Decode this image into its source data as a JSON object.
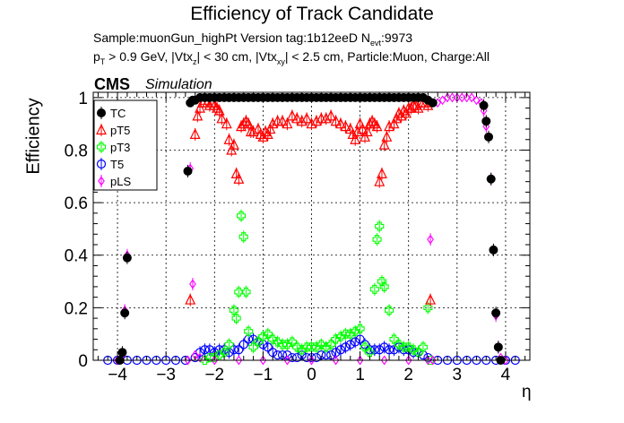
{
  "header": {
    "title": "Efficiency of Track Candidate",
    "subtitle_line1": "Sample:muonGun_highPt   Version tag:1b12eeD  N",
    "subtitle_line1_sub": "evt",
    "subtitle_line1_end": ":9973",
    "subtitle_line2_parts": [
      "p",
      "T",
      " > 0.9 GeV, |Vtx",
      "z",
      "| < 30 cm, |Vtx",
      "xy",
      "| < 2.5 cm, Particle:Muon, Charge:All"
    ],
    "experiment": "CMS",
    "tag": "Simulation"
  },
  "colors": {
    "TC": "#000000",
    "pT5": "#ff0000",
    "pT3": "#00ff00",
    "T5": "#0000ff",
    "pLS": "#ff00ff"
  },
  "chart_data": {
    "type": "scatter",
    "title": "Efficiency of Track Candidate",
    "xlabel": "η",
    "ylabel": "Efficiency",
    "xlim": [
      -4.5,
      4.5
    ],
    "ylim": [
      0,
      1.02
    ],
    "grid": true,
    "xticks": [
      -4,
      -3,
      -2,
      -1,
      0,
      1,
      2,
      3,
      4
    ],
    "xtick_labels": [
      "−4",
      "−3",
      "−2",
      "−1",
      "0",
      "1",
      "2",
      "3",
      "4"
    ],
    "yticks": [
      0,
      0.2,
      0.4,
      0.6,
      0.8,
      1
    ],
    "ytick_labels": [
      "0",
      "0.2",
      "0.4",
      "0.6",
      "0.8",
      "1"
    ],
    "legend": {
      "placement": "top-left",
      "entries": [
        "TC",
        "pT5",
        "pT3",
        "T5",
        "pLS"
      ]
    },
    "series": [
      {
        "name": "TC",
        "marker": "filled-circle",
        "points": [
          [
            -3.95,
            0.0
          ],
          [
            -3.9,
            0.03
          ],
          [
            -3.85,
            0.18
          ],
          [
            -3.8,
            0.39
          ],
          [
            -2.55,
            0.72
          ],
          [
            -2.5,
            0.98
          ],
          [
            -2.45,
            0.99
          ],
          [
            -2.4,
            0.99
          ],
          [
            -2.3,
            1.0
          ],
          [
            -2.2,
            1.0
          ],
          [
            -2.1,
            1.0
          ],
          [
            -2.0,
            1.0
          ],
          [
            -1.9,
            1.0
          ],
          [
            -1.8,
            1.0
          ],
          [
            -1.7,
            1.0
          ],
          [
            -1.6,
            1.0
          ],
          [
            -1.5,
            1.0
          ],
          [
            -1.4,
            1.0
          ],
          [
            -1.3,
            1.0
          ],
          [
            -1.2,
            1.0
          ],
          [
            -1.1,
            1.0
          ],
          [
            -1.0,
            1.0
          ],
          [
            -0.9,
            1.0
          ],
          [
            -0.8,
            1.0
          ],
          [
            -0.7,
            1.0
          ],
          [
            -0.6,
            1.0
          ],
          [
            -0.5,
            1.0
          ],
          [
            -0.4,
            1.0
          ],
          [
            -0.3,
            1.0
          ],
          [
            -0.2,
            1.0
          ],
          [
            -0.1,
            1.0
          ],
          [
            0.0,
            1.0
          ],
          [
            0.1,
            1.0
          ],
          [
            0.2,
            1.0
          ],
          [
            0.3,
            1.0
          ],
          [
            0.4,
            1.0
          ],
          [
            0.5,
            1.0
          ],
          [
            0.6,
            1.0
          ],
          [
            0.7,
            1.0
          ],
          [
            0.8,
            1.0
          ],
          [
            0.9,
            1.0
          ],
          [
            1.0,
            1.0
          ],
          [
            1.1,
            1.0
          ],
          [
            1.2,
            1.0
          ],
          [
            1.3,
            1.0
          ],
          [
            1.4,
            1.0
          ],
          [
            1.5,
            1.0
          ],
          [
            1.6,
            1.0
          ],
          [
            1.7,
            1.0
          ],
          [
            1.8,
            1.0
          ],
          [
            1.9,
            1.0
          ],
          [
            2.0,
            1.0
          ],
          [
            2.1,
            1.0
          ],
          [
            2.2,
            1.0
          ],
          [
            2.3,
            1.0
          ],
          [
            2.4,
            0.99
          ],
          [
            2.5,
            0.98
          ],
          [
            3.55,
            0.97
          ],
          [
            3.6,
            0.91
          ],
          [
            3.65,
            0.85
          ],
          [
            3.7,
            0.69
          ],
          [
            3.75,
            0.42
          ],
          [
            3.8,
            0.18
          ],
          [
            3.85,
            0.05
          ],
          [
            3.9,
            0.0
          ]
        ]
      },
      {
        "name": "pT5",
        "marker": "open-triangle",
        "points": [
          [
            -2.5,
            0.23
          ],
          [
            -2.4,
            0.86
          ],
          [
            -2.35,
            0.93
          ],
          [
            -2.3,
            0.96
          ],
          [
            -2.25,
            0.98
          ],
          [
            -2.2,
            0.99
          ],
          [
            -2.15,
            0.98
          ],
          [
            -2.1,
            0.97
          ],
          [
            -2.05,
            0.98
          ],
          [
            -2.0,
            0.97
          ],
          [
            -1.95,
            0.96
          ],
          [
            -1.9,
            0.95
          ],
          [
            -1.85,
            0.92
          ],
          [
            -1.75,
            0.9
          ],
          [
            -1.7,
            0.84
          ],
          [
            -1.65,
            0.8
          ],
          [
            -1.6,
            0.82
          ],
          [
            -1.55,
            0.71
          ],
          [
            -1.5,
            0.69
          ],
          [
            -1.45,
            0.89
          ],
          [
            -1.4,
            0.9
          ],
          [
            -1.35,
            0.91
          ],
          [
            -1.3,
            0.9
          ],
          [
            -1.25,
            0.87
          ],
          [
            -1.2,
            0.87
          ],
          [
            -1.1,
            0.88
          ],
          [
            -1.05,
            0.86
          ],
          [
            -1.0,
            0.85
          ],
          [
            -0.95,
            0.87
          ],
          [
            -0.9,
            0.86
          ],
          [
            -0.85,
            0.88
          ],
          [
            -0.8,
            0.9
          ],
          [
            -0.7,
            0.91
          ],
          [
            -0.6,
            0.91
          ],
          [
            -0.5,
            0.9
          ],
          [
            -0.4,
            0.93
          ],
          [
            -0.3,
            0.92
          ],
          [
            -0.2,
            0.91
          ],
          [
            -0.1,
            0.92
          ],
          [
            0.0,
            0.9
          ],
          [
            0.1,
            0.91
          ],
          [
            0.2,
            0.92
          ],
          [
            0.3,
            0.92
          ],
          [
            0.4,
            0.93
          ],
          [
            0.5,
            0.91
          ],
          [
            0.6,
            0.9
          ],
          [
            0.7,
            0.89
          ],
          [
            0.8,
            0.88
          ],
          [
            0.85,
            0.86
          ],
          [
            0.9,
            0.84
          ],
          [
            0.95,
            0.87
          ],
          [
            1.0,
            0.9
          ],
          [
            1.05,
            0.88
          ],
          [
            1.1,
            0.85
          ],
          [
            1.15,
            0.87
          ],
          [
            1.2,
            0.9
          ],
          [
            1.25,
            0.91
          ],
          [
            1.3,
            0.9
          ],
          [
            1.35,
            0.89
          ],
          [
            1.4,
            0.68
          ],
          [
            1.45,
            0.71
          ],
          [
            1.5,
            0.82
          ],
          [
            1.55,
            0.85
          ],
          [
            1.6,
            0.89
          ],
          [
            1.7,
            0.9
          ],
          [
            1.75,
            0.92
          ],
          [
            1.8,
            0.94
          ],
          [
            1.85,
            0.93
          ],
          [
            1.9,
            0.95
          ],
          [
            1.95,
            0.94
          ],
          [
            2.0,
            0.96
          ],
          [
            2.05,
            0.96
          ],
          [
            2.1,
            0.97
          ],
          [
            2.15,
            0.97
          ],
          [
            2.2,
            0.96
          ],
          [
            2.25,
            0.98
          ],
          [
            2.3,
            0.98
          ],
          [
            2.35,
            0.98
          ],
          [
            2.4,
            0.97
          ],
          [
            2.45,
            0.23
          ]
        ]
      },
      {
        "name": "pT3",
        "marker": "open-cross",
        "points": [
          [
            -2.2,
            0.0
          ],
          [
            -2.1,
            0.01
          ],
          [
            -2.0,
            0.01
          ],
          [
            -1.9,
            0.02
          ],
          [
            -1.8,
            0.03
          ],
          [
            -1.7,
            0.06
          ],
          [
            -1.6,
            0.19
          ],
          [
            -1.55,
            0.16
          ],
          [
            -1.5,
            0.26
          ],
          [
            -1.45,
            0.55
          ],
          [
            -1.4,
            0.47
          ],
          [
            -1.35,
            0.26
          ],
          [
            -1.3,
            0.11
          ],
          [
            -1.2,
            0.05
          ],
          [
            -1.1,
            0.07
          ],
          [
            -1.0,
            0.09
          ],
          [
            -0.9,
            0.1
          ],
          [
            -0.8,
            0.08
          ],
          [
            -0.7,
            0.07
          ],
          [
            -0.6,
            0.06
          ],
          [
            -0.5,
            0.06
          ],
          [
            -0.4,
            0.07
          ],
          [
            -0.3,
            0.05
          ],
          [
            -0.2,
            0.04
          ],
          [
            -0.1,
            0.05
          ],
          [
            0.0,
            0.05
          ],
          [
            0.1,
            0.05
          ],
          [
            0.2,
            0.06
          ],
          [
            0.3,
            0.05
          ],
          [
            0.4,
            0.06
          ],
          [
            0.5,
            0.08
          ],
          [
            0.6,
            0.09
          ],
          [
            0.7,
            0.1
          ],
          [
            0.8,
            0.1
          ],
          [
            0.9,
            0.11
          ],
          [
            1.0,
            0.12
          ],
          [
            1.1,
            0.05
          ],
          [
            1.2,
            0.03
          ],
          [
            1.3,
            0.27
          ],
          [
            1.35,
            0.46
          ],
          [
            1.4,
            0.51
          ],
          [
            1.45,
            0.3
          ],
          [
            1.5,
            0.28
          ],
          [
            1.6,
            0.19
          ],
          [
            1.7,
            0.08
          ],
          [
            1.8,
            0.06
          ],
          [
            1.9,
            0.05
          ],
          [
            2.0,
            0.05
          ],
          [
            2.1,
            0.04
          ],
          [
            2.2,
            0.03
          ],
          [
            2.3,
            0.05
          ],
          [
            2.4,
            0.2
          ],
          [
            2.45,
            0.0
          ]
        ]
      },
      {
        "name": "T5",
        "marker": "open-circle",
        "points": [
          [
            -4.2,
            0.0
          ],
          [
            -4.0,
            0.0
          ],
          [
            -3.8,
            0.0
          ],
          [
            -3.6,
            0.0
          ],
          [
            -3.4,
            0.0
          ],
          [
            -3.2,
            0.0
          ],
          [
            -3.0,
            0.0
          ],
          [
            -2.8,
            0.0
          ],
          [
            -2.6,
            0.0
          ],
          [
            -2.4,
            0.01
          ],
          [
            -2.3,
            0.03
          ],
          [
            -2.2,
            0.04
          ],
          [
            -2.1,
            0.04
          ],
          [
            -2.0,
            0.03
          ],
          [
            -1.9,
            0.04
          ],
          [
            -1.8,
            0.04
          ],
          [
            -1.7,
            0.03
          ],
          [
            -1.6,
            0.04
          ],
          [
            -1.5,
            0.04
          ],
          [
            -1.4,
            0.06
          ],
          [
            -1.3,
            0.08
          ],
          [
            -1.2,
            0.08
          ],
          [
            -1.1,
            0.07
          ],
          [
            -1.0,
            0.06
          ],
          [
            -0.9,
            0.05
          ],
          [
            -0.8,
            0.03
          ],
          [
            -0.7,
            0.02
          ],
          [
            -0.6,
            0.02
          ],
          [
            -0.5,
            0.02
          ],
          [
            -0.4,
            0.01
          ],
          [
            -0.3,
            0.01
          ],
          [
            -0.2,
            0.02
          ],
          [
            -0.1,
            0.01
          ],
          [
            0.0,
            0.01
          ],
          [
            0.1,
            0.01
          ],
          [
            0.2,
            0.02
          ],
          [
            0.3,
            0.02
          ],
          [
            0.4,
            0.02
          ],
          [
            0.5,
            0.03
          ],
          [
            0.6,
            0.04
          ],
          [
            0.7,
            0.05
          ],
          [
            0.8,
            0.06
          ],
          [
            0.9,
            0.07
          ],
          [
            1.0,
            0.08
          ],
          [
            1.1,
            0.06
          ],
          [
            1.2,
            0.04
          ],
          [
            1.3,
            0.04
          ],
          [
            1.4,
            0.04
          ],
          [
            1.5,
            0.05
          ],
          [
            1.6,
            0.04
          ],
          [
            1.7,
            0.04
          ],
          [
            1.8,
            0.05
          ],
          [
            1.9,
            0.04
          ],
          [
            2.0,
            0.04
          ],
          [
            2.1,
            0.03
          ],
          [
            2.2,
            0.03
          ],
          [
            2.3,
            0.02
          ],
          [
            2.4,
            0.01
          ],
          [
            2.6,
            0.0
          ],
          [
            2.8,
            0.0
          ],
          [
            3.0,
            0.0
          ],
          [
            3.2,
            0.0
          ],
          [
            3.4,
            0.0
          ],
          [
            3.6,
            0.0
          ],
          [
            3.8,
            0.0
          ],
          [
            4.0,
            0.0
          ],
          [
            4.2,
            0.0
          ]
        ]
      },
      {
        "name": "pLS",
        "marker": "open-diamond",
        "points": [
          [
            -4.0,
            0.0
          ],
          [
            -3.9,
            0.02
          ],
          [
            -3.85,
            0.19
          ],
          [
            -3.8,
            0.4
          ],
          [
            -2.55,
            0.0
          ],
          [
            -2.5,
            0.73
          ],
          [
            -2.45,
            0.29
          ],
          [
            -2.4,
            0.02
          ],
          [
            -2.3,
            0.01
          ],
          [
            -2.0,
            0.0
          ],
          [
            -1.5,
            0.0
          ],
          [
            -1.0,
            0.0
          ],
          [
            -0.5,
            0.0
          ],
          [
            0.0,
            0.0
          ],
          [
            0.5,
            0.0
          ],
          [
            1.0,
            0.0
          ],
          [
            1.5,
            0.0
          ],
          [
            2.0,
            0.0
          ],
          [
            2.4,
            0.0
          ],
          [
            2.45,
            0.46
          ],
          [
            2.5,
            0.0
          ],
          [
            2.6,
            0.98
          ],
          [
            2.7,
            0.99
          ],
          [
            2.8,
            1.0
          ],
          [
            2.9,
            1.0
          ],
          [
            3.0,
            1.0
          ],
          [
            3.1,
            1.0
          ],
          [
            3.2,
            1.0
          ],
          [
            3.3,
            1.0
          ],
          [
            3.4,
            0.99
          ],
          [
            3.5,
            0.98
          ],
          [
            3.55,
            0.95
          ],
          [
            3.6,
            0.89
          ],
          [
            3.65,
            0.85
          ],
          [
            3.7,
            0.69
          ],
          [
            3.75,
            0.42
          ],
          [
            3.8,
            0.17
          ],
          [
            3.85,
            0.05
          ],
          [
            3.9,
            0.01
          ],
          [
            4.0,
            0.0
          ]
        ]
      }
    ]
  }
}
